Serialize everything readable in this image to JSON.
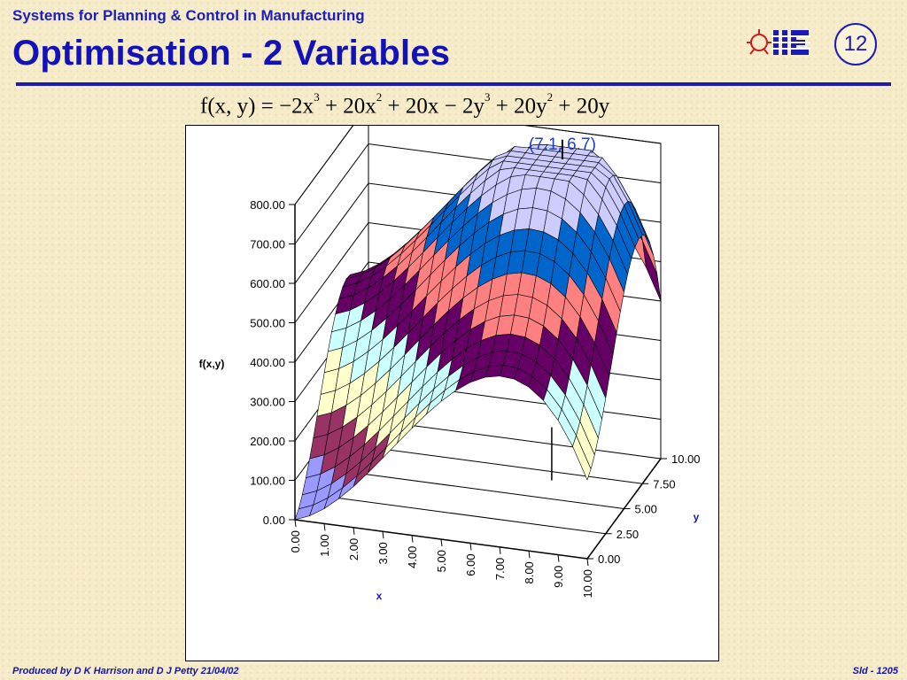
{
  "header": {
    "course_title": "Systems for Planning & Control in Manufacturing",
    "slide_title": "Optimisation - 2 Variables",
    "slide_number": "12",
    "logo_text": "IIE"
  },
  "formula": {
    "lhs": "f(x, y) = ",
    "terms": [
      {
        "coef": "−2x",
        "exp": "3"
      },
      {
        "coef": " + 20x",
        "exp": "2"
      },
      {
        "coef": " + 20x − 2y",
        "exp": "3"
      },
      {
        "coef": " + 20y",
        "exp": "2"
      },
      {
        "coef": " + 20y",
        "exp": ""
      }
    ]
  },
  "chart_data": {
    "type": "surface",
    "function": "f(x,y) = -2x^3 + 20x^2 + 20x - 2y^3 + 20y^2 + 20y",
    "x": {
      "label": "x",
      "range": [
        0,
        10
      ],
      "ticks": [
        "0.00",
        "1.00",
        "2.00",
        "3.00",
        "4.00",
        "5.00",
        "6.00",
        "7.00",
        "8.00",
        "9.00",
        "10.00"
      ]
    },
    "y": {
      "label": "y",
      "range": [
        0,
        10
      ],
      "ticks": [
        "0.00",
        "2.50",
        "5.00",
        "7.50",
        "10.00"
      ]
    },
    "z": {
      "label": "f(x,y)",
      "range": [
        0,
        800
      ],
      "ticks": [
        "0.00",
        "100.00",
        "200.00",
        "300.00",
        "400.00",
        "500.00",
        "600.00",
        "700.00",
        "800.00"
      ]
    },
    "color_bands": [
      {
        "from": 0,
        "to": 100,
        "color": "#9999ff"
      },
      {
        "from": 100,
        "to": 200,
        "color": "#993366"
      },
      {
        "from": 200,
        "to": 300,
        "color": "#ffffcc"
      },
      {
        "from": 300,
        "to": 400,
        "color": "#ccffff"
      },
      {
        "from": 400,
        "to": 500,
        "color": "#660066"
      },
      {
        "from": 500,
        "to": 600,
        "color": "#ff8080"
      },
      {
        "from": 600,
        "to": 700,
        "color": "#0066cc"
      },
      {
        "from": 700,
        "to": 800,
        "color": "#ccccff"
      }
    ],
    "annotation": {
      "text": "(7.1, 6.7)",
      "x": 7.1,
      "y": 6.7
    },
    "grid": true
  },
  "footer": {
    "left": "Produced by D K Harrison and D J Petty 21/04/02",
    "right": "Sld - 1205"
  }
}
